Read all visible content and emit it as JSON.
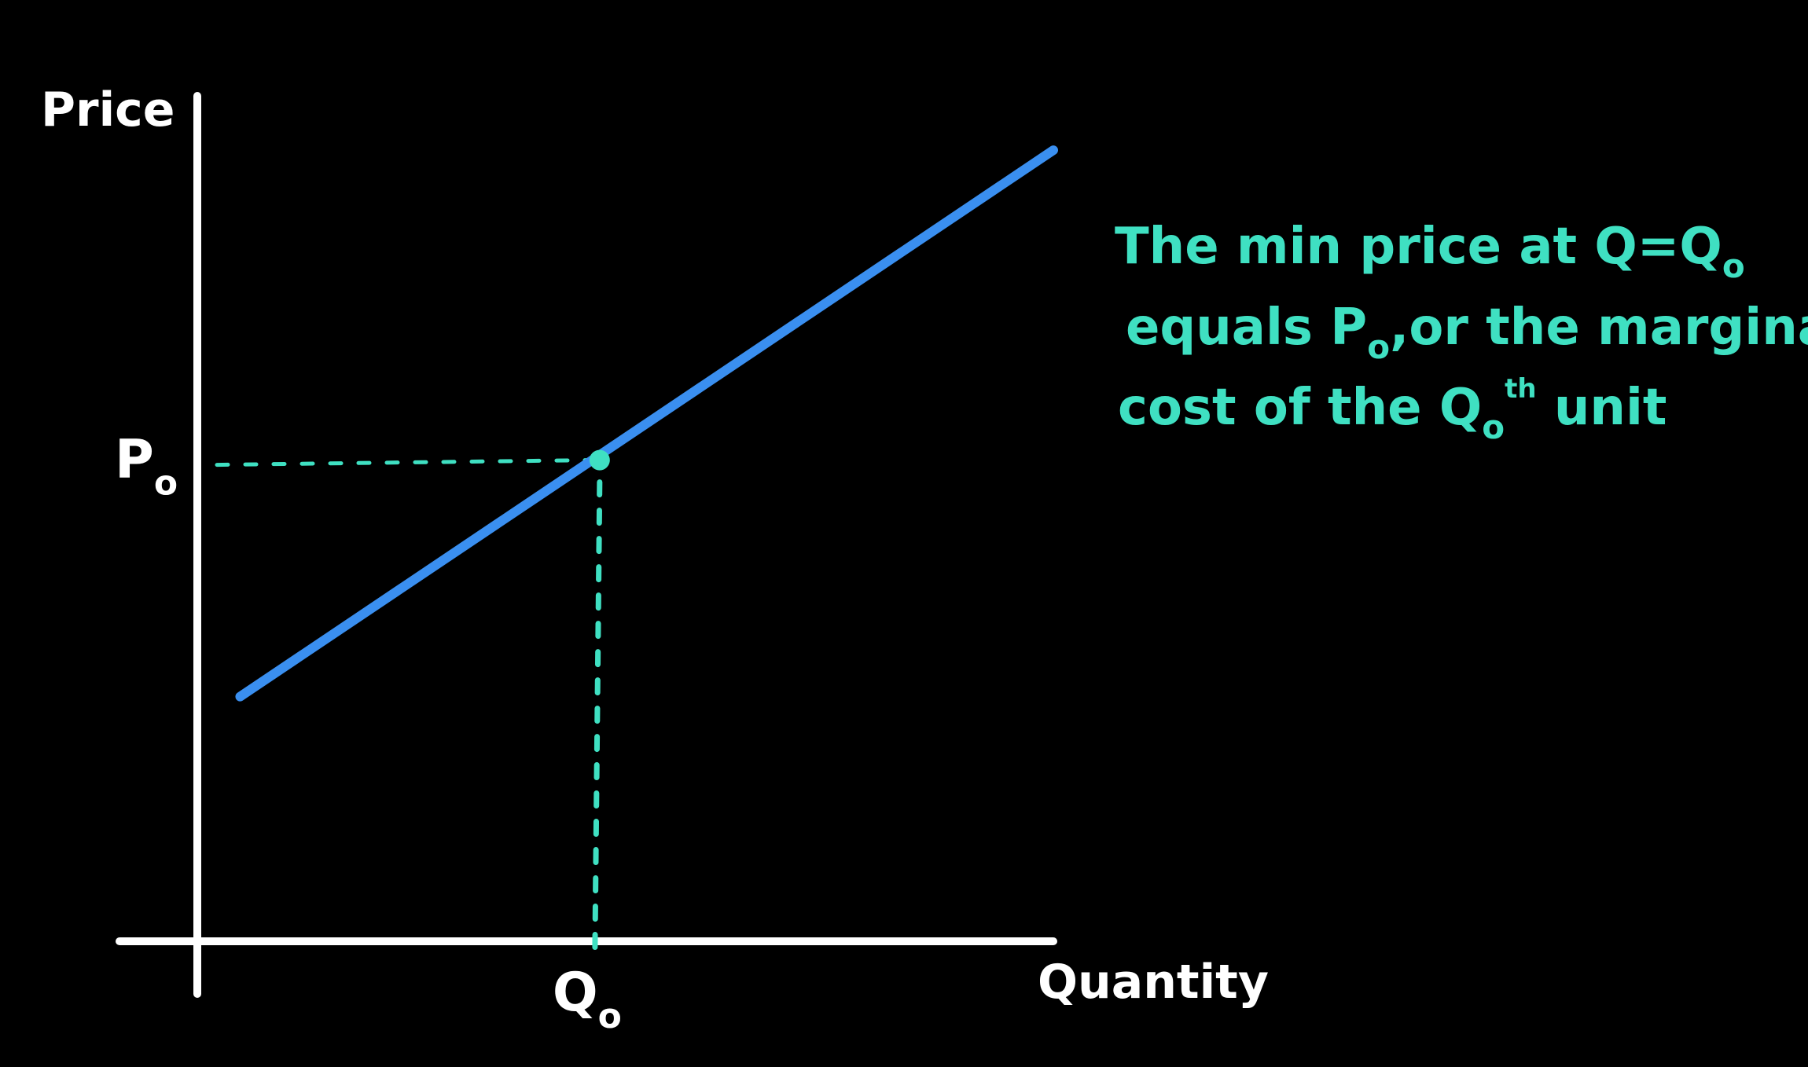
{
  "chart_data": {
    "type": "line",
    "xlabel": "Quantity",
    "ylabel": "Price",
    "x_tick_label": {
      "main": "Q",
      "sub": "o"
    },
    "y_tick_label": {
      "main": "P",
      "sub": "o"
    },
    "series": [
      {
        "points": [
          {
            "x": 0.05,
            "y": 0.3
          },
          {
            "x": 1.0,
            "y": 0.97
          }
        ]
      }
    ],
    "marked_point": {
      "x": 0.47,
      "y": 0.59
    },
    "xlim": [
      0,
      1.0
    ],
    "ylim": [
      0,
      1.0
    ],
    "grid": false,
    "annotation": {
      "lines": [
        [
          "The min price at Q=Q",
          "o"
        ],
        [
          "equals P",
          "o",
          ",or the marginal"
        ],
        [
          "cost of the  Q",
          "o",
          "th",
          " unit"
        ]
      ]
    },
    "colors": {
      "background": "#000000",
      "axes": "#ffffff",
      "curve": "#3a8ff0",
      "annotation": "#3fe0c2",
      "guide": "#3fe0c2"
    }
  }
}
